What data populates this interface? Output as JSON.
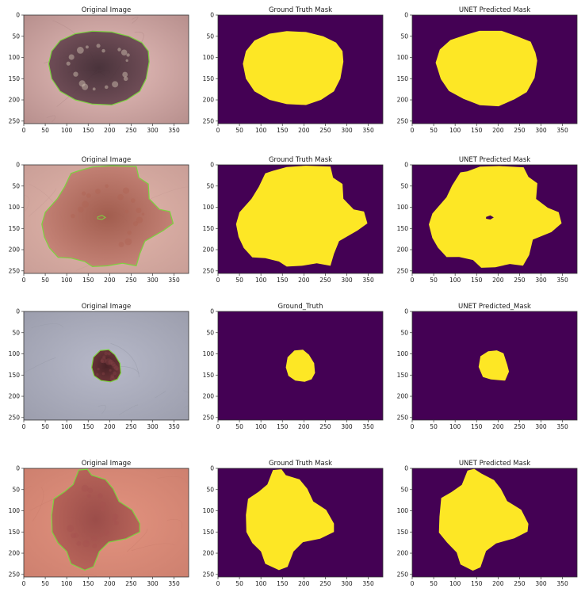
{
  "figure": {
    "xticks": [
      "0",
      "50",
      "100",
      "150",
      "200",
      "250",
      "300",
      "350"
    ],
    "yticks": [
      "0",
      "50",
      "100",
      "150",
      "200",
      "250"
    ],
    "colors": {
      "mask_background": "#440154",
      "mask_foreground": "#fde725",
      "contour": "#7cd33f",
      "axes_frame": "#333333"
    },
    "rows": [
      {
        "skin": {
          "base": "#e7c0bc",
          "edge": "#b48c8a"
        },
        "lesion": {
          "base": "#6e4a55",
          "core": "#3c2730",
          "spots": "#d8c9b9"
        },
        "titles": [
          "Original Image",
          "Ground Truth Mask",
          "UNET Predicted Mask"
        ]
      },
      {
        "skin": {
          "base": "#e4b8ac",
          "edge": "#c89d96"
        },
        "lesion": {
          "base": "#c88579",
          "core": "#9c5546",
          "spots": "#b06455"
        },
        "titles": [
          "Original Image",
          "Ground Truth Mask",
          "UNET Predicted Mask"
        ]
      },
      {
        "skin": {
          "base": "#b7b9c9",
          "edge": "#9a9cab"
        },
        "lesion": {
          "base": "#6a2c2e",
          "core": "#3d1417",
          "spots": "#824145"
        },
        "titles": [
          "Original Image",
          "Ground_Truth",
          "UNET Predicted_Mask"
        ]
      },
      {
        "skin": {
          "base": "#e3937f",
          "edge": "#cc7f6e"
        },
        "lesion": {
          "base": "#b86459",
          "core": "#954745",
          "spots": "#a65350"
        },
        "titles": [
          "Original Image",
          "Ground Truth Mask",
          "UNET Predicted Mask"
        ]
      }
    ]
  }
}
